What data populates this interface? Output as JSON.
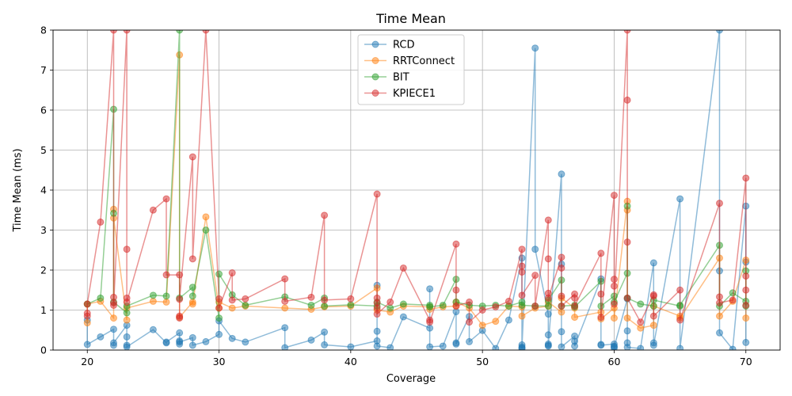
{
  "chart_data": {
    "type": "line",
    "title": "Time Mean",
    "xlabel": "Coverage",
    "ylabel": "Time Mean (ms)",
    "xlim": [
      17.4,
      72.6
    ],
    "ylim": [
      0,
      8
    ],
    "xticks": [
      20,
      30,
      40,
      50,
      60,
      70
    ],
    "yticks": [
      0,
      1,
      2,
      3,
      4,
      5,
      6,
      7,
      8
    ],
    "grid": true,
    "legend_position": "top-center",
    "series": [
      {
        "name": "RCD",
        "color": "#1f77b4",
        "x": [
          20,
          20,
          21,
          22,
          22,
          22,
          23,
          23,
          23,
          23,
          25,
          26,
          26,
          27,
          27,
          27,
          27,
          28,
          28,
          29,
          30,
          30,
          31,
          32,
          35,
          35,
          37,
          38,
          38,
          40,
          42,
          42,
          42,
          42,
          43,
          44,
          46,
          46,
          46,
          47,
          48,
          48,
          48,
          49,
          49,
          50,
          51,
          52,
          53,
          53,
          53,
          53,
          53,
          54,
          54,
          55,
          55,
          55,
          55,
          55,
          56,
          56,
          56,
          56,
          57,
          57,
          57,
          59,
          59,
          59,
          60,
          60,
          60,
          60,
          61,
          61,
          61,
          61,
          62,
          63,
          63,
          63,
          65,
          65,
          68,
          68,
          68,
          69,
          70,
          70,
          70
        ],
        "y": [
          0.75,
          0.14,
          0.33,
          0.52,
          0.12,
          0.18,
          0.62,
          0.33,
          0.12,
          0.08,
          0.51,
          0.18,
          0.2,
          0.43,
          0.23,
          0.15,
          0.2,
          0.31,
          0.12,
          0.21,
          0.39,
          0.73,
          0.29,
          0.2,
          0.56,
          0.06,
          0.25,
          0.45,
          0.13,
          0.08,
          0.23,
          1.62,
          0.47,
          0.1,
          0.06,
          0.83,
          0.55,
          1.53,
          0.08,
          0.1,
          0.96,
          0.18,
          0.15,
          0.84,
          0.21,
          0.49,
          0.04,
          0.75,
          2.3,
          0.13,
          0.08,
          0.05,
          0.04,
          7.55,
          2.52,
          0.9,
          0.38,
          0.15,
          0.1,
          0.12,
          4.4,
          2.15,
          0.46,
          0.08,
          0.35,
          0.22,
          0.1,
          1.78,
          0.14,
          0.12,
          0.15,
          0.1,
          0.05,
          0.08,
          1.28,
          0.48,
          0.18,
          0.07,
          0.04,
          2.18,
          0.18,
          0.12,
          3.78,
          0.04,
          8.0,
          1.98,
          0.43,
          0.02,
          3.6,
          2.2,
          0.19
        ]
      },
      {
        "name": "RRTConnect",
        "color": "#ff7f0e",
        "x": [
          20,
          20,
          21,
          22,
          22,
          22,
          23,
          23,
          25,
          26,
          27,
          27,
          28,
          28,
          29,
          30,
          30,
          31,
          32,
          35,
          37,
          38,
          40,
          42,
          42,
          43,
          44,
          46,
          46,
          47,
          48,
          48,
          49,
          50,
          51,
          52,
          53,
          53,
          54,
          55,
          55,
          56,
          56,
          57,
          57,
          59,
          59,
          60,
          60,
          61,
          61,
          61,
          62,
          63,
          63,
          65,
          65,
          68,
          68,
          69,
          70,
          70
        ],
        "y": [
          0.68,
          1.15,
          1.22,
          0.8,
          3.52,
          3.3,
          0.75,
          1.05,
          1.22,
          1.2,
          7.38,
          0.82,
          1.2,
          1.15,
          3.33,
          1.05,
          1.2,
          1.05,
          1.1,
          1.05,
          1.02,
          1.08,
          1.1,
          1.55,
          1.0,
          0.95,
          1.1,
          1.08,
          1.02,
          1.08,
          1.1,
          1.2,
          1.05,
          0.62,
          0.72,
          1.1,
          1.08,
          0.85,
          1.05,
          1.1,
          1.2,
          0.95,
          1.3,
          1.05,
          0.82,
          0.95,
          0.78,
          1.05,
          0.8,
          3.72,
          3.5,
          0.8,
          0.55,
          0.62,
          1.1,
          0.85,
          0.8,
          2.3,
          0.85,
          1.22,
          2.25,
          0.8
        ]
      },
      {
        "name": "BIT",
        "color": "#2ca02c",
        "x": [
          20,
          21,
          22,
          22,
          22,
          23,
          23,
          25,
          26,
          27,
          27,
          28,
          28,
          29,
          30,
          30,
          31,
          32,
          35,
          37,
          38,
          38,
          40,
          42,
          42,
          43,
          44,
          46,
          46,
          47,
          48,
          48,
          49,
          50,
          51,
          52,
          53,
          53,
          54,
          55,
          55,
          56,
          56,
          57,
          57,
          59,
          59,
          60,
          60,
          61,
          61,
          61,
          62,
          63,
          63,
          65,
          65,
          68,
          68,
          69,
          70,
          70,
          70
        ],
        "y": [
          1.15,
          1.3,
          6.02,
          3.42,
          1.2,
          0.93,
          1.1,
          1.37,
          1.35,
          8.0,
          1.3,
          1.57,
          1.35,
          3.0,
          0.8,
          1.9,
          1.38,
          1.12,
          1.33,
          1.12,
          1.3,
          1.1,
          1.13,
          1.1,
          1.2,
          1.05,
          1.15,
          1.12,
          1.08,
          1.12,
          1.77,
          1.2,
          1.12,
          1.1,
          1.12,
          1.1,
          1.2,
          1.12,
          1.1,
          1.1,
          1.25,
          1.75,
          1.1,
          1.12,
          1.08,
          1.72,
          1.1,
          1.35,
          1.2,
          1.92,
          3.6,
          1.3,
          1.15,
          1.1,
          1.25,
          1.1,
          1.12,
          2.62,
          1.1,
          1.43,
          1.22,
          1.98,
          1.1
        ]
      },
      {
        "name": "KPIECE1",
        "color": "#d62728",
        "x": [
          20,
          20,
          20,
          21,
          22,
          22,
          22,
          22,
          23,
          23,
          23,
          23,
          25,
          26,
          26,
          27,
          27,
          27,
          27,
          28,
          28,
          29,
          30,
          30,
          31,
          31,
          32,
          35,
          35,
          37,
          38,
          38,
          40,
          42,
          42,
          42,
          42,
          42,
          43,
          44,
          46,
          46,
          48,
          48,
          48,
          49,
          49,
          50,
          51,
          52,
          53,
          53,
          53,
          53,
          54,
          54,
          55,
          55,
          55,
          55,
          56,
          56,
          56,
          56,
          57,
          57,
          57,
          59,
          59,
          59,
          60,
          60,
          60,
          60,
          61,
          61,
          61,
          61,
          62,
          63,
          63,
          63,
          65,
          65,
          68,
          68,
          68,
          69,
          70,
          70,
          70,
          70
        ],
        "y": [
          0.85,
          0.92,
          1.15,
          3.2,
          8.0,
          1.32,
          1.18,
          1.12,
          8.0,
          2.52,
          1.3,
          1.2,
          3.5,
          3.78,
          1.88,
          1.88,
          0.85,
          0.8,
          1.27,
          4.83,
          2.28,
          8.0,
          1.28,
          1.05,
          1.93,
          1.25,
          1.28,
          1.78,
          1.22,
          1.32,
          3.37,
          1.25,
          1.28,
          3.9,
          1.3,
          1.18,
          1.05,
          0.9,
          1.2,
          2.05,
          0.75,
          0.7,
          2.65,
          1.5,
          1.1,
          1.2,
          0.7,
          1.0,
          1.08,
          1.22,
          2.52,
          2.1,
          1.95,
          1.37,
          1.87,
          1.1,
          3.25,
          2.28,
          1.42,
          1.3,
          2.32,
          2.05,
          1.35,
          1.1,
          1.4,
          1.3,
          1.1,
          2.42,
          1.4,
          0.82,
          3.87,
          1.77,
          1.6,
          1.15,
          8.0,
          6.25,
          2.7,
          1.3,
          0.7,
          1.38,
          1.35,
          0.85,
          1.5,
          0.75,
          3.67,
          1.33,
          1.18,
          1.25,
          4.3,
          1.85,
          1.5,
          1.12
        ]
      }
    ]
  }
}
